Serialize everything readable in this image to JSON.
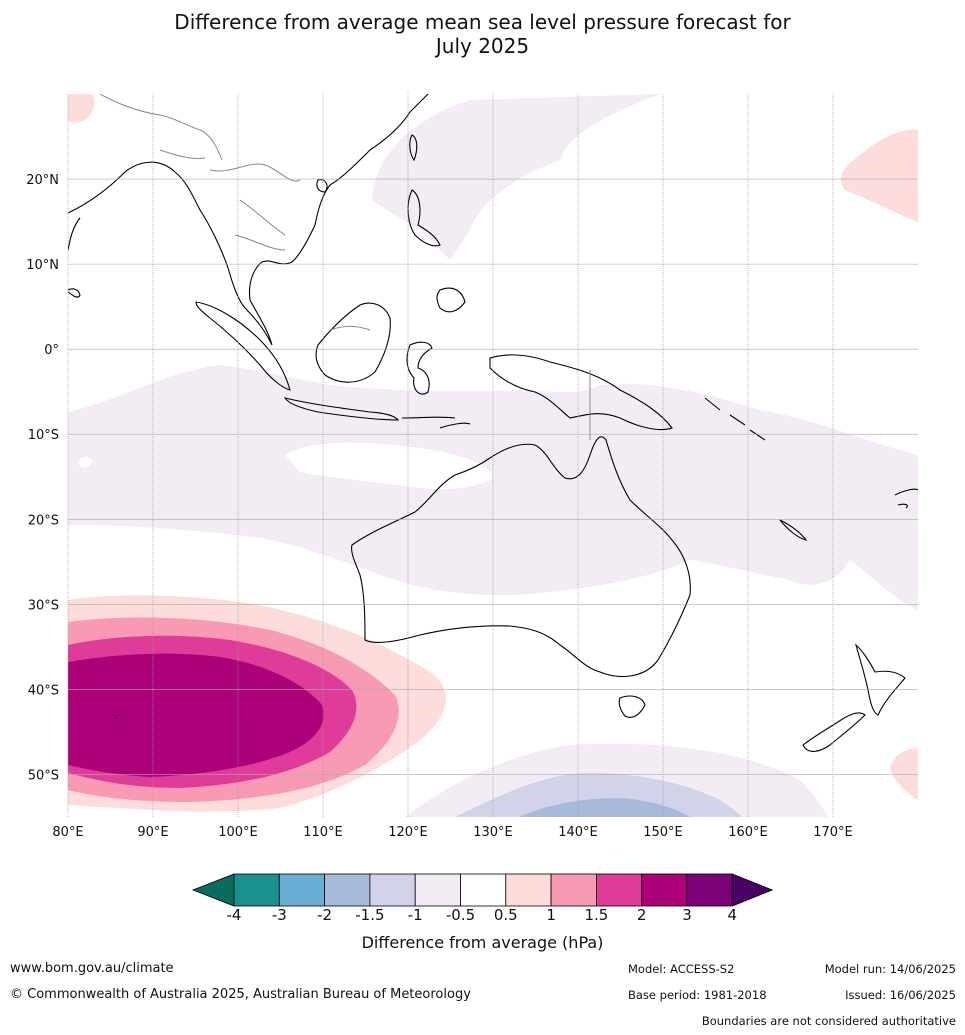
{
  "title_line1": "Difference from average mean sea level pressure forecast for",
  "title_line2": "July 2025",
  "map": {
    "lon_labels": [
      "80°E",
      "90°E",
      "100°E",
      "110°E",
      "120°E",
      "130°E",
      "140°E",
      "150°E",
      "160°E",
      "170°E"
    ],
    "lat_labels": [
      "20°N",
      "10°N",
      "0°",
      "10°S",
      "20°S",
      "30°S",
      "40°S",
      "50°S"
    ],
    "extent": {
      "lon_min": 80,
      "lon_max": 180,
      "lat_min": -55,
      "lat_max": 30
    }
  },
  "colorbar": {
    "ticks": [
      "-4",
      "-3",
      "-2",
      "-1.5",
      "-1",
      "-0.5",
      "0.5",
      "1",
      "1.5",
      "2",
      "3",
      "4"
    ],
    "colors": [
      "#1a9090",
      "#6aaed6",
      "#a6bbda",
      "#d2d3e9",
      "#f3ecf5",
      "#ffffff",
      "#fddcdc",
      "#f99ab5",
      "#df3b98",
      "#ad0179",
      "#7a0177"
    ],
    "low_extend_color": "#0a6b5e",
    "high_extend_color": "#4b0065",
    "label": "Difference from average (hPa)"
  },
  "footer": {
    "website": "www.bom.gov.au/climate",
    "copyright": "© Commonwealth of Australia 2025, Australian Bureau of Meteorology",
    "model": "Model: ACCESS-S2",
    "base_period": "Base period: 1981-2018",
    "model_run": "Model run: 14/06/2025",
    "issued": "Issued: 16/06/2025",
    "disclaimer": "Boundaries are not considered authoritative"
  }
}
